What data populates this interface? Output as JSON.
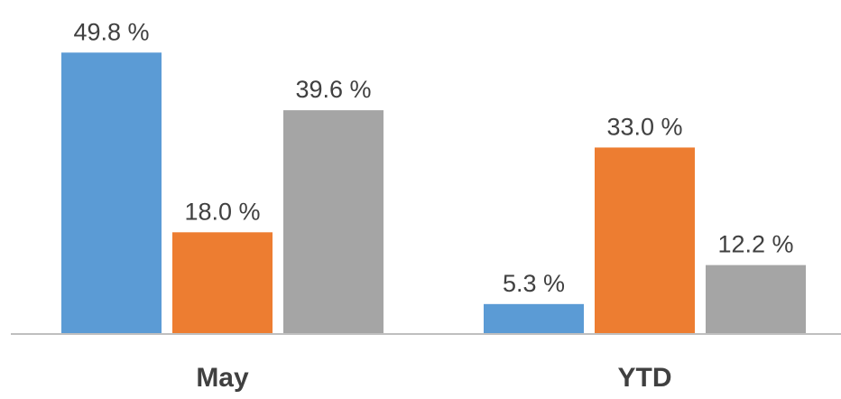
{
  "chart_data": {
    "type": "bar",
    "categories": [
      "May",
      "YTD"
    ],
    "series": [
      {
        "values": [
          49.8,
          5.3
        ],
        "labels": [
          "49.8 %",
          "5.3 %"
        ],
        "color": "#5b9bd5"
      },
      {
        "values": [
          18.0,
          33.0
        ],
        "labels": [
          "18.0 %",
          "33.0 %"
        ],
        "color": "#ed7d31"
      },
      {
        "values": [
          39.6,
          12.2
        ],
        "labels": [
          "39.6 %",
          "12.2 %"
        ],
        "color": "#a5a5a5"
      }
    ],
    "ylim": [
      0,
      50
    ],
    "grid": false,
    "legend": "none",
    "axis_color": "#bfbfbf"
  }
}
